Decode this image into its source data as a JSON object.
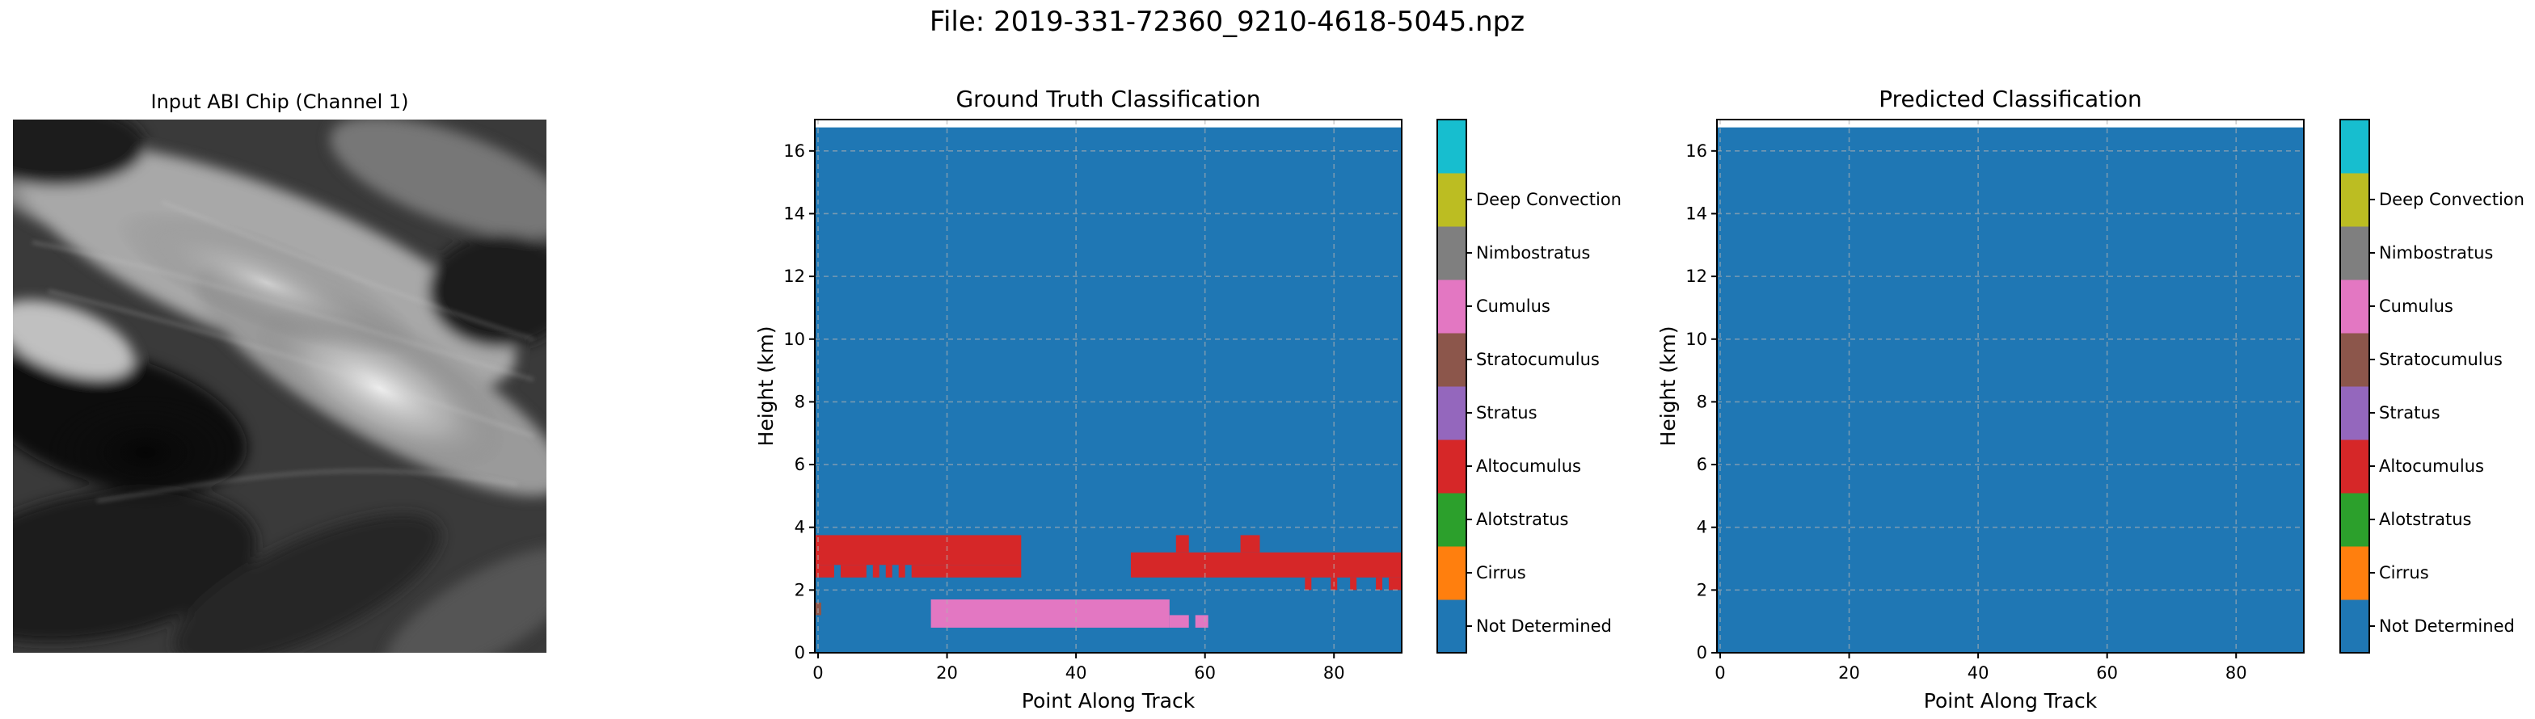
{
  "figure_title": "File: 2019-331-72360_9210-4618-5045.npz",
  "image_panel": {
    "title": "Input ABI Chip (Channel 1)"
  },
  "colors": {
    "Not Determined": "#1f77b4",
    "Cirrus": "#ff7f0e",
    "Alotstratus": "#2ca02c",
    "Altocumulus": "#d62728",
    "Stratus": "#9467bd",
    "Stratocumulus": "#8c564b",
    "Cumulus": "#e377c2",
    "Nimbostratus": "#7f7f7f",
    "Deep Convection_left": "#bcbd22",
    "Deep Convection": "#17becf"
  },
  "chart_data": [
    {
      "type": "heatmap",
      "title": "Ground Truth Classification",
      "xlabel": "Point Along Track",
      "ylabel": "Height (km)",
      "xlim": [
        -0.5,
        90.5
      ],
      "ylim": [
        0,
        17
      ],
      "xticks": [
        0,
        20,
        40,
        60,
        80
      ],
      "yticks": [
        0,
        2,
        4,
        6,
        8,
        10,
        12,
        14,
        16
      ],
      "grid": true,
      "data_top_km": 16.75,
      "background_class": "Not Determined",
      "colorbar": {
        "labels": [
          "Not Determined",
          "Cirrus",
          "Alotstratus",
          "Altocumulus",
          "Stratus",
          "Stratocumulus",
          "Cumulus",
          "Nimbostratus",
          "Deep Convection"
        ],
        "colors": [
          "#1f77b4",
          "#ff7f0e",
          "#2ca02c",
          "#d62728",
          "#9467bd",
          "#8c564b",
          "#e377c2",
          "#7f7f7f",
          "#bcbd22",
          "#17becf"
        ]
      },
      "regions": [
        {
          "class": "Altocumulus",
          "x": [
            -0.5,
            31.5
          ],
          "y": [
            2.8,
            3.75
          ]
        },
        {
          "class": "Altocumulus",
          "x": [
            -0.5,
            2.5
          ],
          "y": [
            2.4,
            2.8
          ]
        },
        {
          "class": "Altocumulus",
          "x": [
            3.5,
            7.5
          ],
          "y": [
            2.4,
            2.8
          ]
        },
        {
          "class": "Altocumulus",
          "x": [
            8.5,
            9.5
          ],
          "y": [
            2.4,
            2.8
          ]
        },
        {
          "class": "Altocumulus",
          "x": [
            10.5,
            11.5
          ],
          "y": [
            2.4,
            2.8
          ]
        },
        {
          "class": "Altocumulus",
          "x": [
            12.5,
            13.5
          ],
          "y": [
            2.4,
            2.8
          ]
        },
        {
          "class": "Altocumulus",
          "x": [
            14.5,
            31.5
          ],
          "y": [
            2.4,
            2.8
          ]
        },
        {
          "class": "Altocumulus",
          "x": [
            48.5,
            90.5
          ],
          "y": [
            2.4,
            3.2
          ]
        },
        {
          "class": "Altocumulus",
          "x": [
            55.5,
            57.5
          ],
          "y": [
            3.2,
            3.75
          ]
        },
        {
          "class": "Altocumulus",
          "x": [
            65.5,
            68.5
          ],
          "y": [
            3.2,
            3.75
          ]
        },
        {
          "class": "Altocumulus",
          "x": [
            75.5,
            76.5
          ],
          "y": [
            2.0,
            2.4
          ]
        },
        {
          "class": "Altocumulus",
          "x": [
            79.5,
            80.5
          ],
          "y": [
            2.0,
            2.4
          ]
        },
        {
          "class": "Altocumulus",
          "x": [
            82.5,
            83.5
          ],
          "y": [
            2.0,
            2.4
          ]
        },
        {
          "class": "Altocumulus",
          "x": [
            86.5,
            87.5
          ],
          "y": [
            2.0,
            2.4
          ]
        },
        {
          "class": "Altocumulus",
          "x": [
            88.5,
            90.5
          ],
          "y": [
            2.0,
            2.4
          ]
        },
        {
          "class": "Cumulus",
          "x": [
            17.5,
            54.5
          ],
          "y": [
            0.8,
            1.7
          ]
        },
        {
          "class": "Cumulus",
          "x": [
            54.5,
            57.5
          ],
          "y": [
            0.8,
            1.2
          ]
        },
        {
          "class": "Cumulus",
          "x": [
            58.5,
            60.5
          ],
          "y": [
            0.8,
            1.2
          ]
        },
        {
          "class": "Stratocumulus",
          "x": [
            -0.5,
            0.5
          ],
          "y": [
            1.2,
            1.6
          ]
        }
      ]
    },
    {
      "type": "heatmap",
      "title": "Predicted Classification",
      "xlabel": "Point Along Track",
      "ylabel": "Height (km)",
      "xlim": [
        -0.5,
        90.5
      ],
      "ylim": [
        0,
        17
      ],
      "xticks": [
        0,
        20,
        40,
        60,
        80
      ],
      "yticks": [
        0,
        2,
        4,
        6,
        8,
        10,
        12,
        14,
        16
      ],
      "grid": true,
      "data_top_km": 16.75,
      "background_class": "Not Determined",
      "colorbar": {
        "labels": [
          "Not Determined",
          "Cirrus",
          "Alotstratus",
          "Altocumulus",
          "Stratus",
          "Stratocumulus",
          "Cumulus",
          "Nimbostratus",
          "Deep Convection"
        ],
        "colors": [
          "#1f77b4",
          "#ff7f0e",
          "#2ca02c",
          "#d62728",
          "#9467bd",
          "#8c564b",
          "#e377c2",
          "#7f7f7f",
          "#bcbd22",
          "#17becf"
        ]
      },
      "regions": []
    }
  ]
}
